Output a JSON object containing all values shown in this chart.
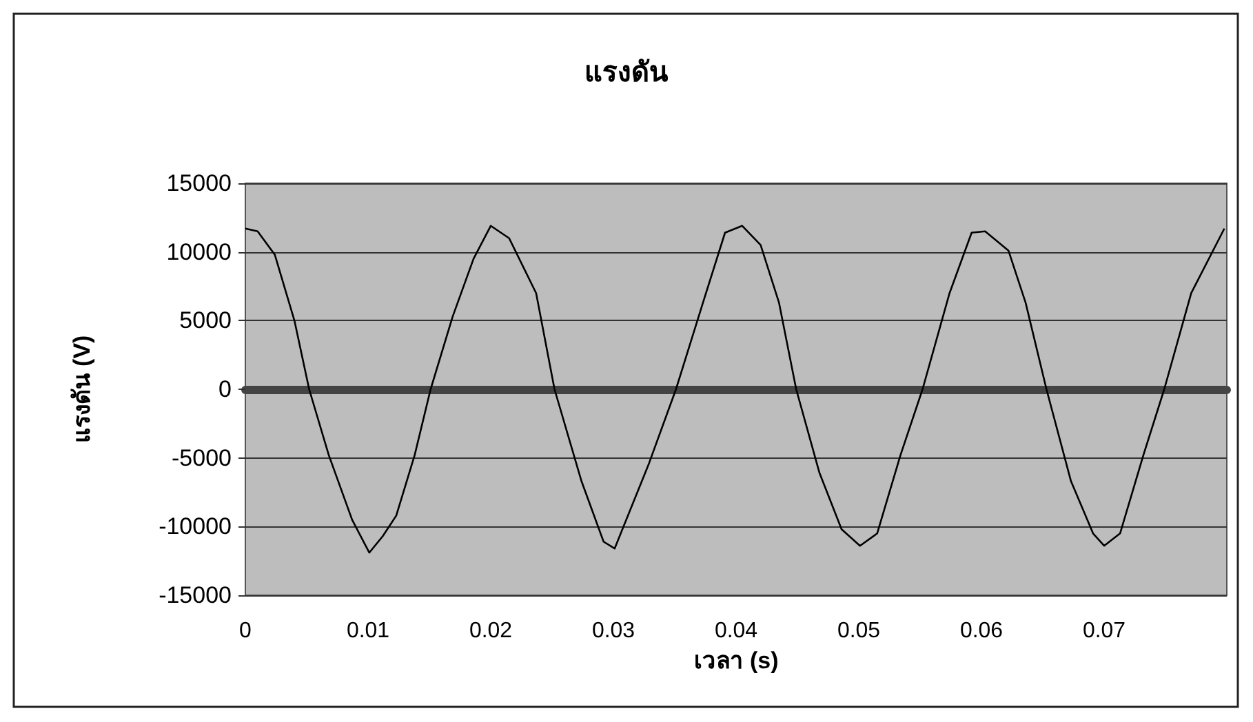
{
  "chart_data": {
    "type": "line",
    "title": "แรงดัน",
    "xlabel": "เวลา (s)",
    "ylabel": "แรงดัน (V)",
    "x": [
      0,
      0.001,
      0.0024,
      0.004,
      0.0052,
      0.0068,
      0.0087,
      0.0101,
      0.0112,
      0.0123,
      0.0138,
      0.0151,
      0.0169,
      0.0186,
      0.02,
      0.0215,
      0.0237,
      0.0252,
      0.0274,
      0.0292,
      0.0301,
      0.0329,
      0.0351,
      0.0373,
      0.0391,
      0.0405,
      0.042,
      0.0435,
      0.0449,
      0.0468,
      0.0486,
      0.0501,
      0.0515,
      0.0534,
      0.0552,
      0.0574,
      0.0592,
      0.0603,
      0.0622,
      0.0636,
      0.0653,
      0.0673,
      0.0691,
      0.07,
      0.0713,
      0.0732,
      0.0749,
      0.0771,
      0.0798
    ],
    "series": [
      {
        "color": "#000000",
        "values": [
          11700,
          11500,
          9800,
          5000,
          0,
          -4800,
          -9500,
          -11900,
          -10700,
          -9200,
          -4800,
          0,
          5300,
          9500,
          11900,
          11000,
          7000,
          0,
          -6700,
          -11100,
          -11600,
          -5400,
          0,
          6300,
          11400,
          11900,
          10500,
          6300,
          0,
          -6100,
          -10200,
          -11400,
          -10500,
          -4800,
          0,
          7000,
          11400,
          11500,
          10100,
          6300,
          0,
          -6700,
          -10500,
          -11400,
          -10500,
          -4800,
          0,
          7000,
          11700
        ]
      }
    ],
    "xlim": [
      0,
      0.08
    ],
    "xticks": [
      0,
      0.01,
      0.02,
      0.03,
      0.04,
      0.05,
      0.06,
      0.07
    ],
    "ylim": [
      -15000,
      15000
    ],
    "yticks": [
      -15000,
      -10000,
      -5000,
      0,
      5000,
      10000,
      15000
    ],
    "grid": "y",
    "marker": "none",
    "line_style": "solid"
  }
}
